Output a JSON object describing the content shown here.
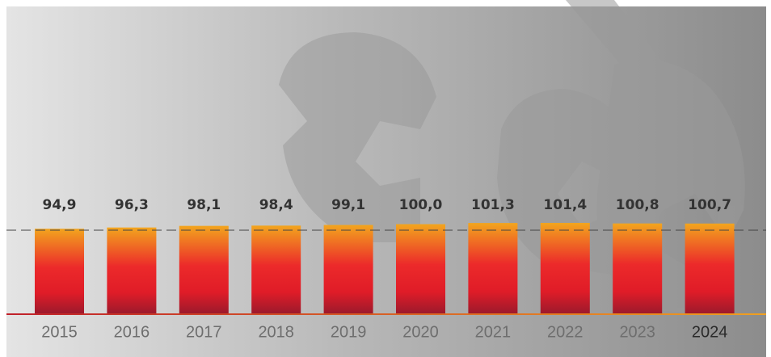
{
  "chart_data": {
    "type": "bar",
    "categories": [
      "2015",
      "2016",
      "2017",
      "2018",
      "2019",
      "2020",
      "2021",
      "2022",
      "2023",
      "2024"
    ],
    "values": [
      94.9,
      96.3,
      98.1,
      98.4,
      99.1,
      100.0,
      101.3,
      101.4,
      100.8,
      100.7
    ],
    "value_labels": [
      "94,9",
      "96,3",
      "98,1",
      "98,4",
      "99,1",
      "100,0",
      "101,3",
      "101,4",
      "100,8",
      "100,7"
    ],
    "ylim": [
      0,
      349
    ]
  }
}
